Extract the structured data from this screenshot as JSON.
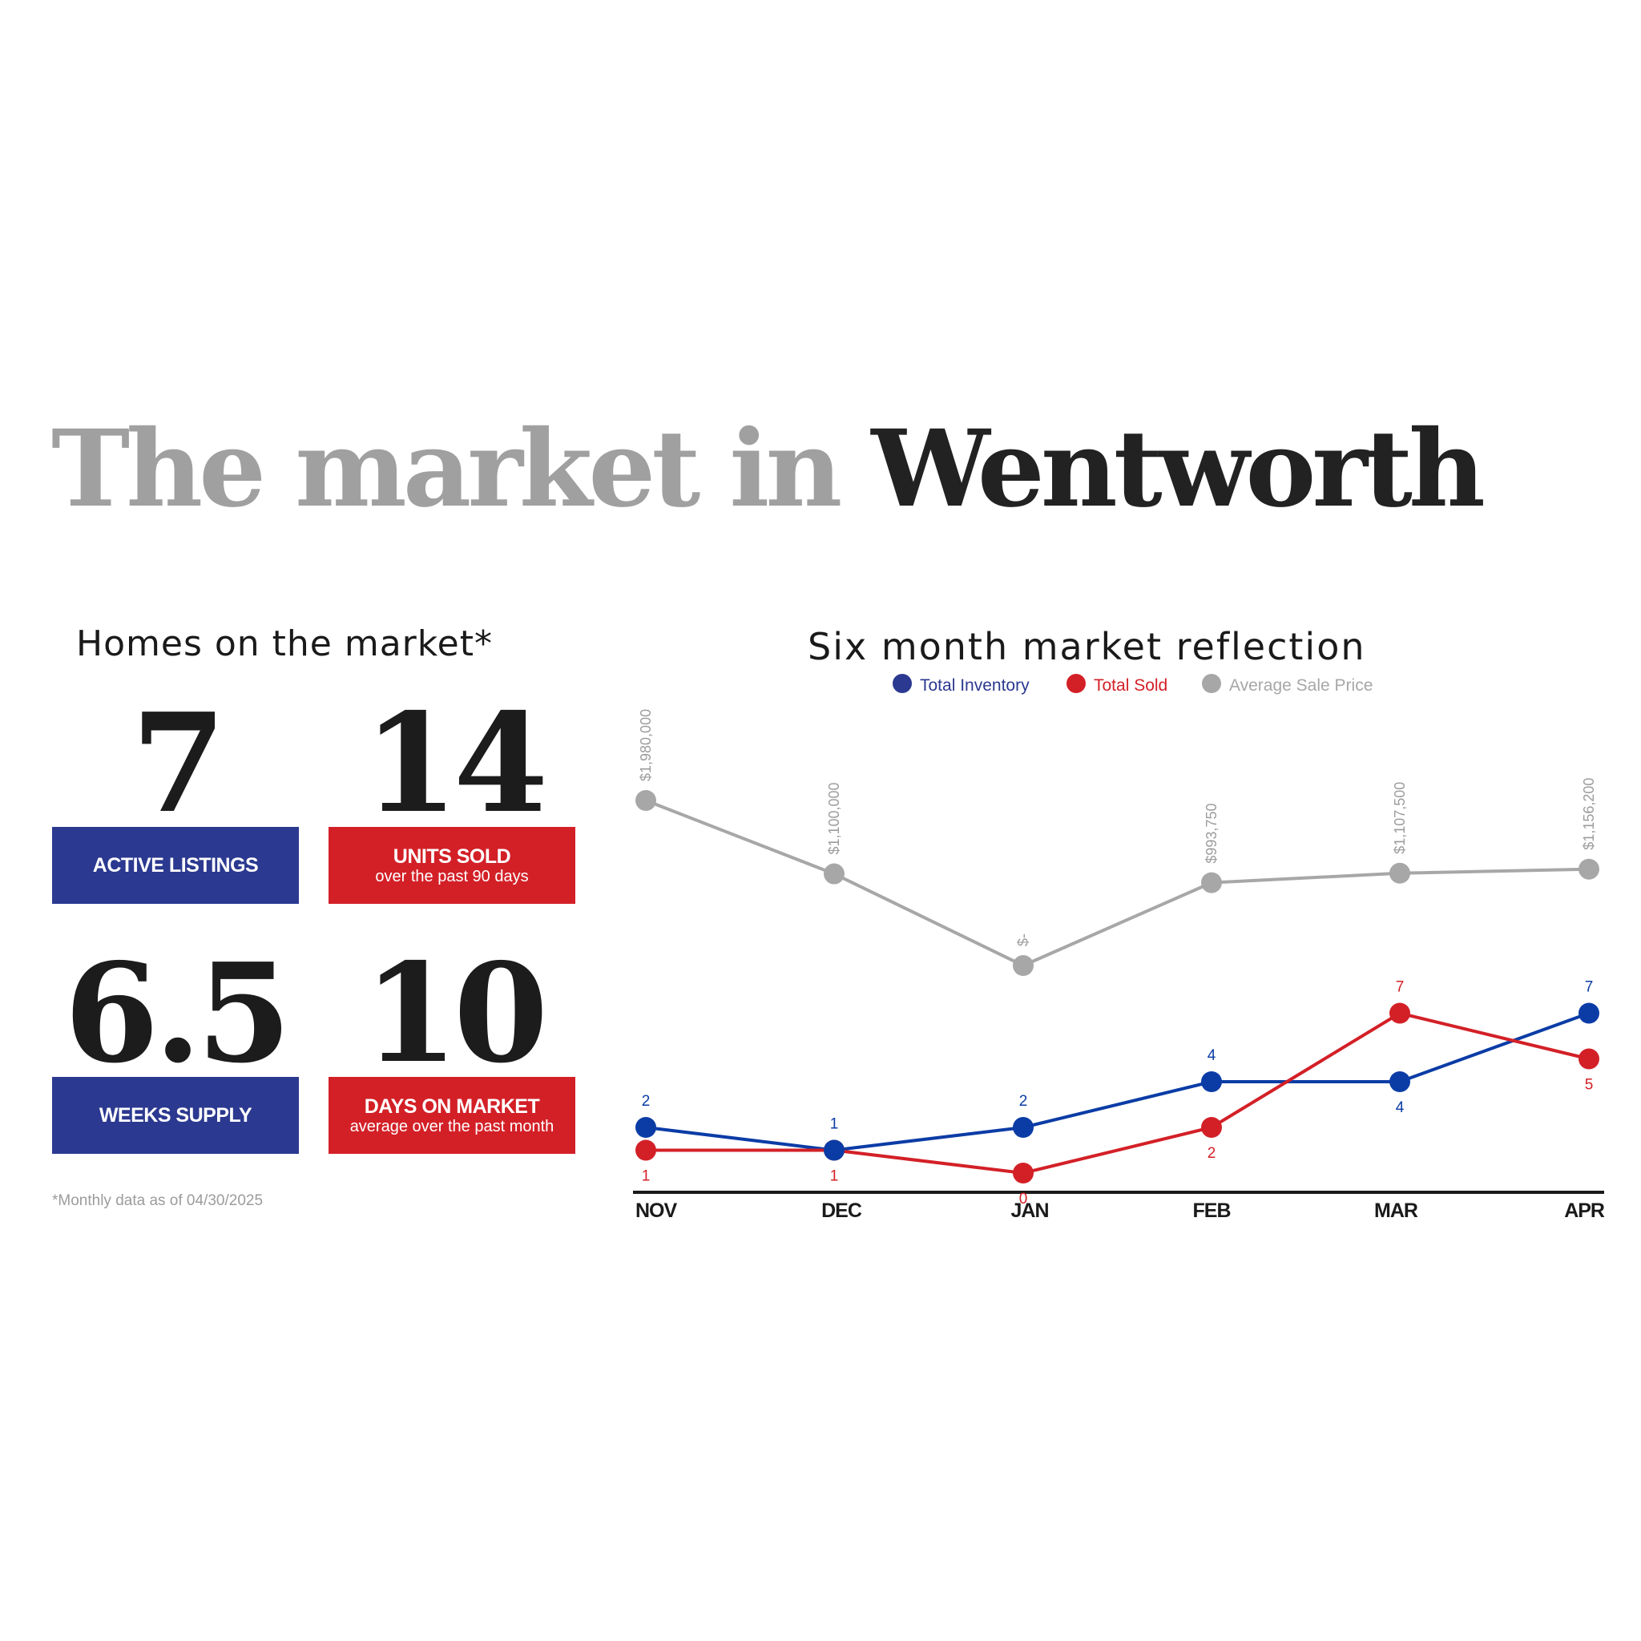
{
  "title": {
    "part1": "The market in",
    "part2": "Wentworth"
  },
  "homes": {
    "heading": "Homes on the market*",
    "stats": [
      {
        "value": "7",
        "label": "ACTIVE LISTINGS",
        "sub": "",
        "color": "#2b3990"
      },
      {
        "value": "14",
        "label": "UNITS SOLD",
        "sub": "over the past 90 days",
        "color": "#d32027"
      },
      {
        "value": "6.5",
        "label": "WEEKS SUPPLY",
        "sub": "",
        "color": "#2b3990"
      },
      {
        "value": "10",
        "label": "DAYS ON MARKET",
        "sub": "average over the past month",
        "color": "#d32027"
      }
    ],
    "footnote": "*Monthly data as of 04/30/2025"
  },
  "chart_data": {
    "type": "line",
    "title": "Six month market reflection",
    "categories": [
      "NOV",
      "DEC",
      "JAN",
      "FEB",
      "MAR",
      "APR"
    ],
    "legend_position": "top-center",
    "grid": false,
    "series": [
      {
        "name": "Total Inventory",
        "color": "#0b3ca6",
        "values": [
          2,
          1,
          2,
          4,
          4,
          7
        ],
        "labels": [
          "2",
          "1",
          "2",
          "4",
          "4",
          "7"
        ]
      },
      {
        "name": "Total Sold",
        "color": "#d32027",
        "values": [
          1,
          1,
          0,
          2,
          7,
          5
        ],
        "labels": [
          "1",
          "1",
          "0",
          "2",
          "7",
          "5"
        ]
      },
      {
        "name": "Average Sale Price",
        "color": "#a7a7a7",
        "values": [
          1980000,
          1100000,
          0,
          993750,
          1107500,
          1156200
        ],
        "labels": [
          "$1,980,000",
          "$1,100,000",
          "$-",
          "$993,750",
          "$1,107,500",
          "$1,156,200"
        ]
      }
    ]
  }
}
